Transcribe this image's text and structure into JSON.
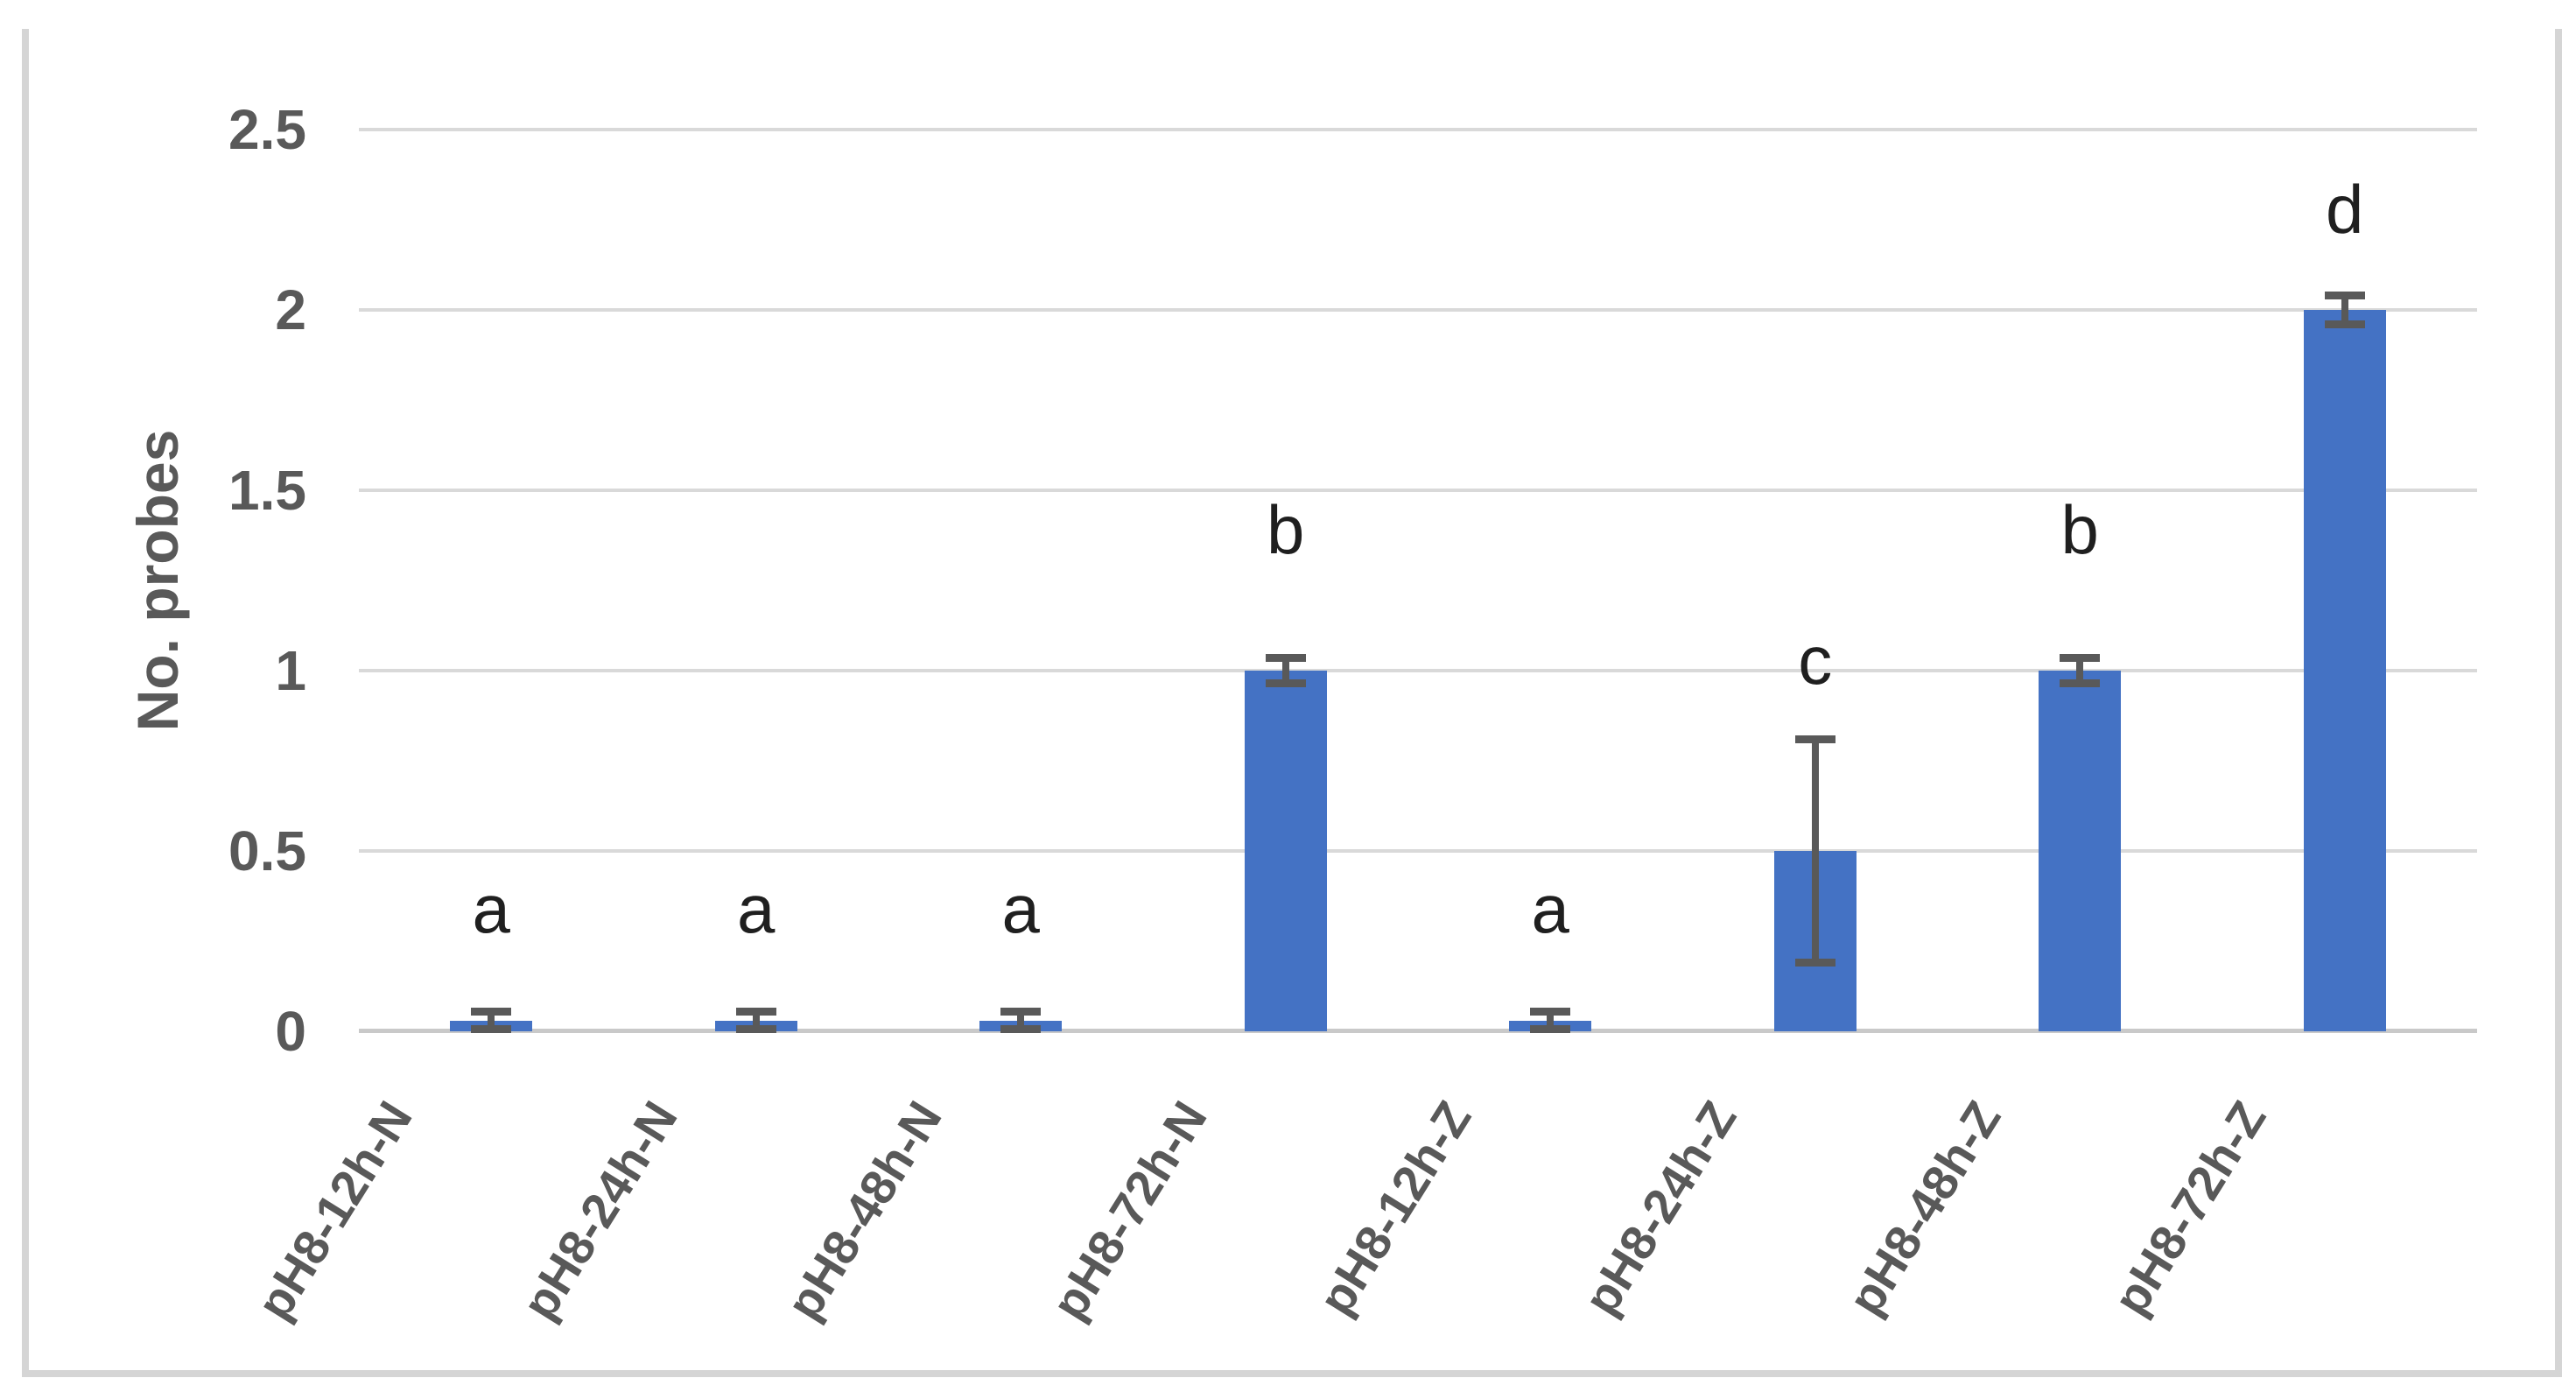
{
  "chart_data": {
    "type": "bar",
    "title": "",
    "ylabel": "No. probes",
    "xlabel": "",
    "ylim": [
      0,
      2.5
    ],
    "grid": true,
    "legend": "none",
    "yticks": [
      {
        "label": "0",
        "value": 0
      },
      {
        "label": "0.5",
        "value": 0.5
      },
      {
        "label": "1",
        "value": 1
      },
      {
        "label": "1.5",
        "value": 1.5
      },
      {
        "label": "2",
        "value": 2
      },
      {
        "label": "2.5",
        "value": 2.5
      }
    ],
    "categories": [
      "pH8-12h-N",
      "pH8-24h-N",
      "pH8-48h-N",
      "pH8-72h-N",
      "pH8-12h-Z",
      "pH8-24h-Z",
      "pH8-48h-Z",
      "pH8-72h-Z"
    ],
    "bars": [
      {
        "label": "pH8-12h-N",
        "value": 0.03,
        "error": 0.025,
        "letter": "a",
        "letter_y": 0.34
      },
      {
        "label": "pH8-24h-N",
        "value": 0.03,
        "error": 0.025,
        "letter": "a",
        "letter_y": 0.34
      },
      {
        "label": "pH8-48h-N",
        "value": 0.03,
        "error": 0.025,
        "letter": "a",
        "letter_y": 0.34
      },
      {
        "label": "pH8-72h-N",
        "value": 1.0,
        "error": 0.035,
        "letter": "b",
        "letter_y": 1.39
      },
      {
        "label": "pH8-12h-Z",
        "value": 0.03,
        "error": 0.025,
        "letter": "a",
        "letter_y": 0.34
      },
      {
        "label": "pH8-24h-Z",
        "value": 0.5,
        "error": 0.31,
        "letter": "c",
        "letter_y": 1.03
      },
      {
        "label": "pH8-48h-Z",
        "value": 1.0,
        "error": 0.035,
        "letter": "b",
        "letter_y": 1.39
      },
      {
        "label": "pH8-72h-Z",
        "value": 2.0,
        "error": 0.04,
        "letter": "d",
        "letter_y": 2.28
      }
    ],
    "colors": {
      "bar": "#4472C4",
      "error_bar": "#595959",
      "gridline": "#D9D9D9",
      "axis_line": "#C9C9C9",
      "axis_text": "#595959",
      "letter_text": "#1F1F1F",
      "frame_border": "#D5D5D5",
      "background": "#FFFFFF"
    }
  }
}
